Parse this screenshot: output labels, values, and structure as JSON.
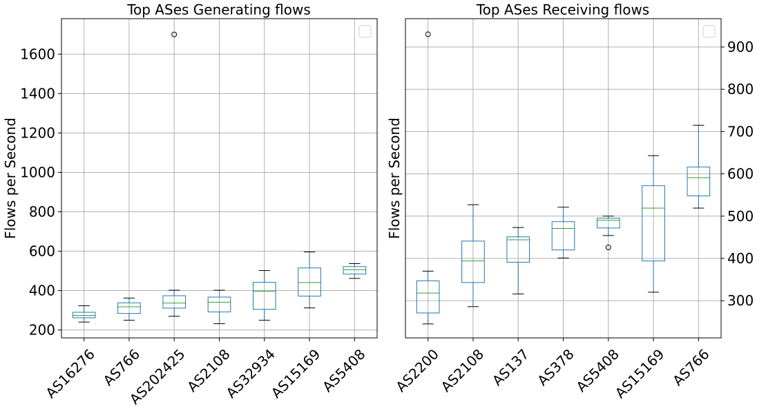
{
  "chart_data": [
    {
      "type": "box",
      "title": "Top ASes Generating flows",
      "ylabel": "Flows per Second",
      "xlabel": "",
      "ylim": [
        160,
        1780
      ],
      "yticks": [
        200,
        400,
        600,
        800,
        1000,
        1200,
        1400,
        1600
      ],
      "y_axis_side": "left",
      "grid": true,
      "legend": "top-right (empty)",
      "box_color": "#1f77b4",
      "median_color": "#2ca02c",
      "whisker_color": "#000000",
      "categories": [
        "AS16276",
        "AS766",
        "AS202425",
        "AS2108",
        "AS32934",
        "AS15169",
        "AS5408"
      ],
      "boxes": [
        {
          "whislo": 240,
          "q1": 262,
          "med": 274,
          "q3": 290,
          "whishi": 323,
          "fliers": []
        },
        {
          "whislo": 250,
          "q1": 284,
          "med": 318,
          "q3": 338,
          "whishi": 362,
          "fliers": []
        },
        {
          "whislo": 270,
          "q1": 311,
          "med": 337,
          "q3": 374,
          "whishi": 402,
          "fliers": [
            1700
          ]
        },
        {
          "whislo": 232,
          "q1": 292,
          "med": 341,
          "q3": 367,
          "whishi": 402,
          "fliers": []
        },
        {
          "whislo": 250,
          "q1": 305,
          "med": 397,
          "q3": 442,
          "whishi": 502,
          "fliers": []
        },
        {
          "whislo": 312,
          "q1": 372,
          "med": 441,
          "q3": 515,
          "whishi": 596,
          "fliers": []
        },
        {
          "whislo": 462,
          "q1": 484,
          "med": 506,
          "q3": 522,
          "whishi": 537,
          "fliers": []
        }
      ]
    },
    {
      "type": "box",
      "title": "Top ASes Receiving flows",
      "ylabel": "Flows per Second",
      "xlabel": "",
      "ylim": [
        212,
        967
      ],
      "yticks": [
        300,
        400,
        500,
        600,
        700,
        800,
        900
      ],
      "y_axis_side": "right",
      "grid": true,
      "legend": "top-right (empty)",
      "box_color": "#1f77b4",
      "median_color": "#2ca02c",
      "whisker_color": "#000000",
      "categories": [
        "AS2200",
        "AS2108",
        "AS137",
        "AS378",
        "AS5408",
        "AS15169",
        "AS766"
      ],
      "boxes": [
        {
          "whislo": 245,
          "q1": 271,
          "med": 318,
          "q3": 347,
          "whishi": 370,
          "fliers": [
            930
          ]
        },
        {
          "whislo": 286,
          "q1": 343,
          "med": 394,
          "q3": 441,
          "whishi": 527,
          "fliers": []
        },
        {
          "whislo": 316,
          "q1": 391,
          "med": 444,
          "q3": 451,
          "whishi": 473,
          "fliers": []
        },
        {
          "whislo": 401,
          "q1": 420,
          "med": 471,
          "q3": 487,
          "whishi": 521,
          "fliers": []
        },
        {
          "whislo": 454,
          "q1": 472,
          "med": 490,
          "q3": 495,
          "whishi": 500,
          "fliers": [
            426
          ]
        },
        {
          "whislo": 320,
          "q1": 394,
          "med": 519,
          "q3": 572,
          "whishi": 643,
          "fliers": []
        },
        {
          "whislo": 519,
          "q1": 548,
          "med": 591,
          "q3": 616,
          "whishi": 715,
          "fliers": []
        }
      ]
    }
  ]
}
